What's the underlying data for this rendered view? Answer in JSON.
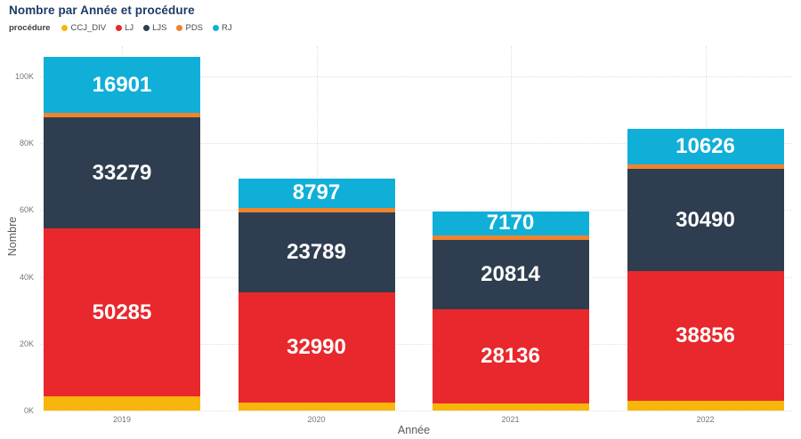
{
  "title": "Nombre par Année et procédure",
  "legend": {
    "label": "procédure",
    "items": [
      {
        "name": "CCJ_DIV",
        "color": "#F8B50B"
      },
      {
        "name": "LJ",
        "color": "#E8282C"
      },
      {
        "name": "LJS",
        "color": "#2E3E50"
      },
      {
        "name": "PDS",
        "color": "#F0832E"
      },
      {
        "name": "RJ",
        "color": "#10AFD8"
      }
    ]
  },
  "axes": {
    "x_title": "Année",
    "y_title": "Nombre"
  },
  "chart_data": {
    "type": "bar",
    "stacked": true,
    "title": "Nombre par Année et procédure",
    "xlabel": "Année",
    "ylabel": "Nombre",
    "categories": [
      "2019",
      "2020",
      "2021",
      "2022"
    ],
    "series": [
      {
        "name": "CCJ_DIV",
        "color": "#F8B50B",
        "values": [
          4200,
          2400,
          2200,
          2900
        ]
      },
      {
        "name": "LJ",
        "color": "#E8282C",
        "values": [
          50285,
          32990,
          28136,
          38856
        ]
      },
      {
        "name": "LJS",
        "color": "#2E3E50",
        "values": [
          33279,
          23789,
          20814,
          30490
        ]
      },
      {
        "name": "PDS",
        "color": "#F0832E",
        "values": [
          1200,
          1500,
          1300,
          1500
        ]
      },
      {
        "name": "RJ",
        "color": "#10AFD8",
        "values": [
          16901,
          8797,
          7170,
          10626
        ]
      }
    ],
    "y_ticks": [
      {
        "value": 0,
        "label": "0K"
      },
      {
        "value": 20000,
        "label": "20K"
      },
      {
        "value": 40000,
        "label": "40K"
      },
      {
        "value": 60000,
        "label": "60K"
      },
      {
        "value": 80000,
        "label": "80K"
      },
      {
        "value": 100000,
        "label": "100K"
      }
    ],
    "ylim": [
      0,
      108000
    ],
    "grid": true,
    "legend_position": "top-left",
    "data_labels_color": "#ffffff",
    "note": ""
  }
}
